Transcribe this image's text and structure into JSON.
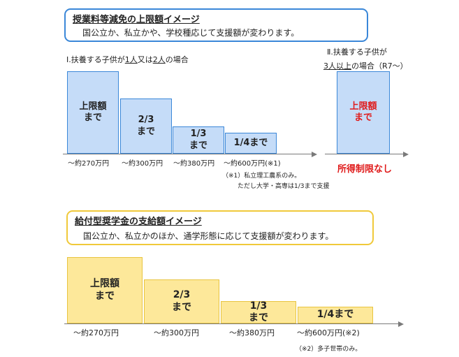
{
  "tuition": {
    "title": "授業料等減免の上限額イメージ",
    "subtitle": "国公立か、私立かや、学校種応じて支援額が変わります。",
    "case1": {
      "prefix": "Ⅰ.扶養する子供が",
      "u1": "1人",
      "mid": "又は",
      "u2": "2人",
      "suffix": "の場合"
    },
    "case2": {
      "line1": "Ⅱ.扶養する子供が",
      "u": "3人以上",
      "suffix": "の場合（R7～）"
    },
    "bars": [
      {
        "label": "上限額\nまで",
        "fraction": 1.0
      },
      {
        "label": "2/3\nまで",
        "fraction": 0.667
      },
      {
        "label": "1/3\nまで",
        "fraction": 0.333
      },
      {
        "label": "1/4まで",
        "fraction": 0.25
      }
    ],
    "ticks": [
      "～約270万円",
      "～約300万円",
      "～約380万円",
      "～約600万円(※1)"
    ],
    "bar_case2": {
      "label": "上限額\nまで",
      "fraction": 1.0,
      "text_color": "#e01b1b"
    },
    "no_limit": "所得制限なし",
    "note_line1": "（※1）私立理工農系のみ。",
    "note_line2": "ただし大学・高専は1/3まで支援"
  },
  "scholarship": {
    "title": "給付型奨学金の支給額イメージ",
    "subtitle": "国公立か、私立かのほか、通学形態に応じて支援額が変わります。",
    "bars": [
      {
        "label": "上限額\nまで",
        "fraction": 1.0
      },
      {
        "label": "2/3\nまで",
        "fraction": 0.667
      },
      {
        "label": "1/3\nまで",
        "fraction": 0.333
      },
      {
        "label": "1/4まで",
        "fraction": 0.25
      }
    ],
    "ticks": [
      "～約270万円",
      "～約300万円",
      "～約380万円",
      "～約600万円(※2)"
    ],
    "note": "（※2）多子世帯のみ。"
  },
  "colors": {
    "blue_border": "#3a87d8",
    "blue_fill": "#c5dcf8",
    "yellow_border": "#f0c93a",
    "yellow_fill": "#fde89a",
    "red": "#e01b1b"
  }
}
